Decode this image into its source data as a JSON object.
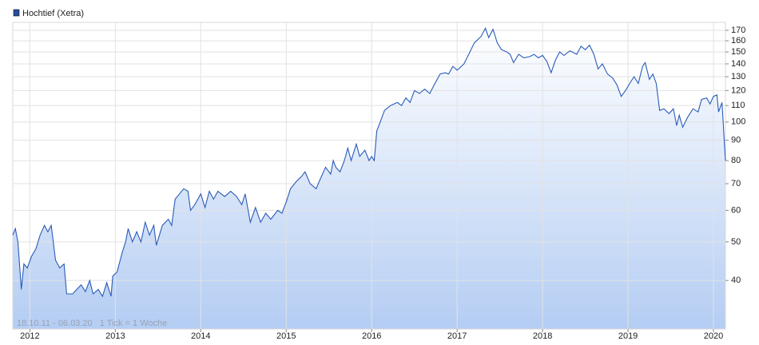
{
  "chart_data": {
    "type": "line",
    "legend": "Hochtief (Xetra)",
    "note": "18.10.11 - 06.03.20   1 Tick = 1 Woche",
    "log_y": true,
    "grid": true,
    "area_fill": true,
    "area_color": "#b4cdf3",
    "xlim": [
      2011.8,
      2020.14
    ],
    "xticks": [
      2012,
      2013,
      2014,
      2015,
      2016,
      2017,
      2018,
      2019,
      2020
    ],
    "ylim": [
      30.2,
      178
    ],
    "yticks": [
      40,
      50,
      60,
      70,
      80,
      90,
      100,
      110,
      120,
      130,
      140,
      150,
      160,
      170
    ],
    "series": [
      {
        "name": "Hochtief (Xetra)",
        "color": "#2a5cb8",
        "x": [
          2011.8,
          2011.83,
          2011.86,
          2011.9,
          2011.93,
          2011.97,
          2012.02,
          2012.07,
          2012.12,
          2012.17,
          2012.21,
          2012.25,
          2012.3,
          2012.35,
          2012.4,
          2012.43,
          2012.5,
          2012.55,
          2012.6,
          2012.65,
          2012.7,
          2012.74,
          2012.8,
          2012.85,
          2012.9,
          2012.95,
          2012.97,
          2013.02,
          2013.08,
          2013.12,
          2013.15,
          2013.2,
          2013.25,
          2013.3,
          2013.35,
          2013.4,
          2013.45,
          2013.48,
          2013.55,
          2013.62,
          2013.66,
          2013.7,
          2013.75,
          2013.8,
          2013.85,
          2013.88,
          2013.93,
          2014.0,
          2014.05,
          2014.1,
          2014.15,
          2014.2,
          2014.28,
          2014.35,
          2014.42,
          2014.48,
          2014.52,
          2014.58,
          2014.64,
          2014.7,
          2014.76,
          2014.82,
          2014.9,
          2014.95,
          2015.0,
          2015.05,
          2015.12,
          2015.18,
          2015.22,
          2015.28,
          2015.35,
          2015.4,
          2015.46,
          2015.52,
          2015.55,
          2015.58,
          2015.63,
          2015.68,
          2015.72,
          2015.76,
          2015.82,
          2015.86,
          2015.92,
          2015.97,
          2016.0,
          2016.03,
          2016.06,
          2016.1,
          2016.15,
          2016.22,
          2016.3,
          2016.35,
          2016.4,
          2016.45,
          2016.5,
          2016.56,
          2016.62,
          2016.68,
          2016.74,
          2016.8,
          2016.86,
          2016.9,
          2016.95,
          2017.0,
          2017.08,
          2017.15,
          2017.2,
          2017.28,
          2017.33,
          2017.37,
          2017.42,
          2017.47,
          2017.52,
          2017.58,
          2017.62,
          2017.66,
          2017.72,
          2017.78,
          2017.85,
          2017.9,
          2017.95,
          2018.0,
          2018.05,
          2018.1,
          2018.15,
          2018.2,
          2018.25,
          2018.32,
          2018.4,
          2018.45,
          2018.5,
          2018.55,
          2018.6,
          2018.65,
          2018.7,
          2018.76,
          2018.82,
          2018.87,
          2018.92,
          2018.97,
          2019.02,
          2019.07,
          2019.12,
          2019.17,
          2019.2,
          2019.25,
          2019.29,
          2019.33,
          2019.37,
          2019.42,
          2019.48,
          2019.53,
          2019.57,
          2019.6,
          2019.64,
          2019.7,
          2019.76,
          2019.82,
          2019.86,
          2019.92,
          2019.96,
          2020.0,
          2020.04,
          2020.06,
          2020.1,
          2020.14
        ],
        "values": [
          52,
          54,
          50,
          38,
          44,
          43,
          46,
          48,
          52,
          55,
          53,
          55,
          45,
          43,
          44,
          37,
          37,
          38,
          39,
          37.5,
          40,
          37,
          38,
          36.5,
          39.5,
          36.5,
          41,
          42,
          47,
          50,
          54,
          50,
          53,
          50,
          56,
          52,
          55,
          49,
          55,
          57,
          55,
          64,
          66,
          68,
          67,
          60,
          62,
          66,
          61,
          67,
          64,
          67,
          65,
          67,
          65,
          62,
          66,
          56,
          61,
          56,
          59,
          57,
          60,
          59,
          63,
          68,
          71,
          73,
          75,
          70,
          68,
          72,
          77,
          74,
          80,
          77,
          75,
          80,
          86,
          80,
          88,
          82,
          85,
          80,
          82,
          80,
          95,
          100,
          107,
          110,
          112,
          110,
          115,
          112,
          120,
          118,
          121,
          118,
          125,
          132,
          133,
          132,
          138,
          135,
          140,
          150,
          158,
          164,
          172,
          163,
          171,
          158,
          152,
          150,
          148,
          141,
          148,
          145,
          146,
          148,
          145,
          147,
          142,
          133,
          143,
          150,
          147,
          151,
          148,
          155,
          152,
          156,
          148,
          136,
          140,
          132,
          129,
          124,
          116,
          120,
          125,
          130,
          125,
          138,
          141,
          128,
          132,
          125,
          107,
          108,
          105,
          108,
          98,
          104,
          97,
          103,
          108,
          106,
          114,
          115,
          111,
          116,
          117,
          106,
          112,
          80
        ]
      }
    ]
  }
}
